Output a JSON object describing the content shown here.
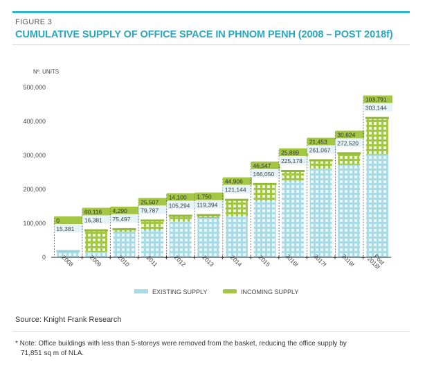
{
  "figure": {
    "label": "FIGURE 3",
    "title": "CUMULATIVE SUPPLY OF OFFICE SPACE IN PHNOM PENH (2008 – POST 2018f)"
  },
  "colors": {
    "accent": "#2aa6bd",
    "existing": "#a9dbe6",
    "incoming": "#a3c644"
  },
  "chart_data": {
    "type": "bar",
    "stacked": true,
    "ylabel": "Nº. UNITS",
    "ylim": [
      0,
      500000
    ],
    "yticks": [
      0,
      100000,
      200000,
      300000,
      400000,
      500000
    ],
    "ytick_labels": [
      "0",
      "100,000",
      "200,000",
      "300,000",
      "400,000",
      "500,000"
    ],
    "categories": [
      "2008",
      "2009",
      "2010",
      "2011",
      "2012",
      "2013",
      "2014",
      "2015",
      "2016f",
      "2017f",
      "2018f",
      "Post 2018f"
    ],
    "series": [
      {
        "name": "EXISTING SUPPLY",
        "values": [
          15381,
          16381,
          75497,
          79787,
          105294,
          119394,
          121144,
          166050,
          225178,
          261067,
          272520,
          303144
        ]
      },
      {
        "name": "INCOMING SUPPLY",
        "values": [
          0,
          60116,
          4290,
          25507,
          14100,
          1750,
          44906,
          46547,
          25889,
          21453,
          30624,
          103791
        ]
      }
    ],
    "existing_labels": [
      "15,381",
      "16,381",
      "75,497",
      "79,787",
      "105,294",
      "119,394",
      "121,144",
      "166,050",
      "225,178",
      "261,067",
      "272,520",
      "303,144"
    ],
    "incoming_labels": [
      "0",
      "60,116",
      "4,290",
      "25,507",
      "14,100",
      "1,750",
      "44,906",
      "46,547",
      "25,889",
      "21,453",
      "30,624",
      "103,791"
    ],
    "legend_position": "bottom",
    "grid": false
  },
  "footer": {
    "source": "Source: Knight Frank Research",
    "note_line1": "* Note: Office buildings with less than 5-storeys were removed from the basket, reducing the office supply by",
    "note_line2": "71,851 sq m of NLA."
  }
}
